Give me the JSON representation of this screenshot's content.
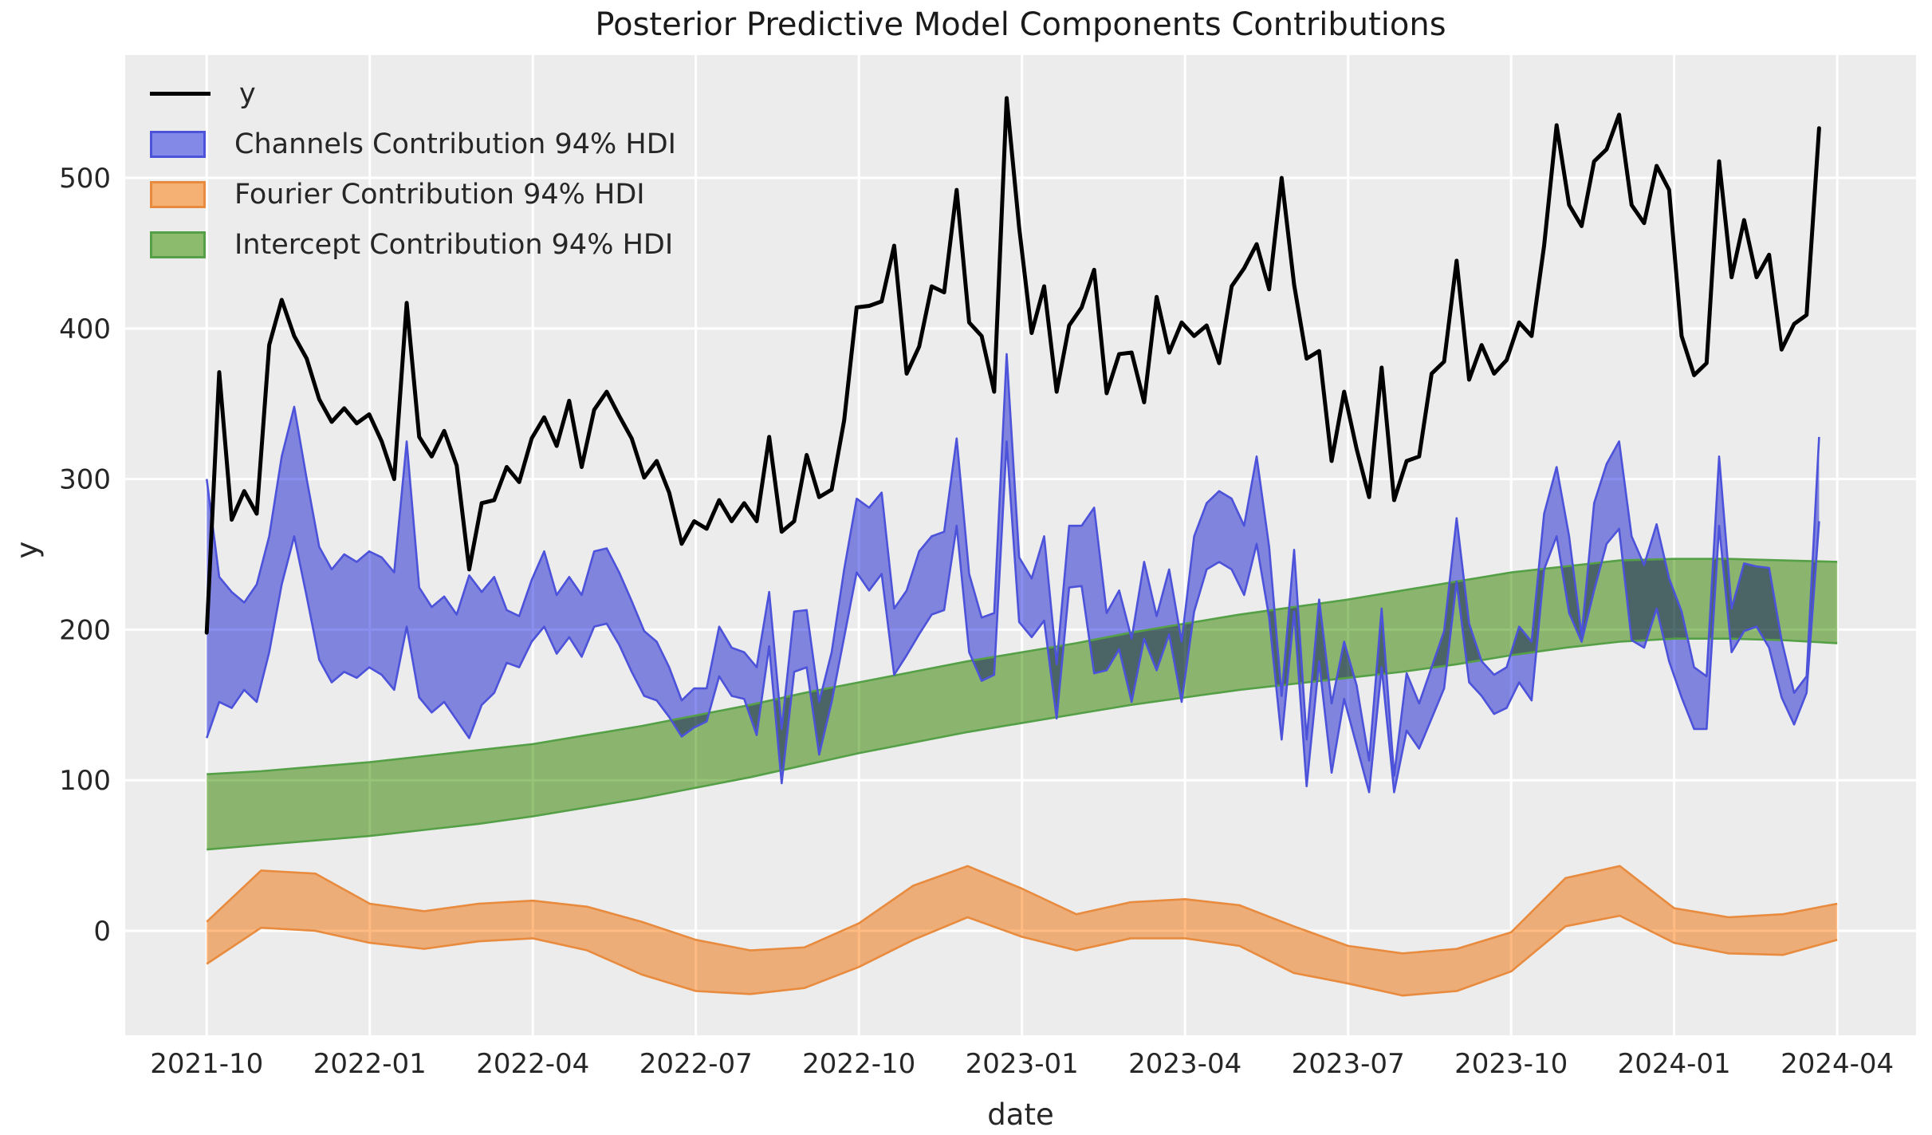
{
  "title": "Posterior Predictive Model Components Contributions",
  "legend": {
    "items": [
      {
        "label": "y",
        "type": "line",
        "color": "#000000"
      },
      {
        "label": "Channels Contribution 94% HDI",
        "type": "patch",
        "fill": "#8289e6",
        "edge": "#4c52d9"
      },
      {
        "label": "Fourier Contribution 94% HDI",
        "type": "patch",
        "fill": "#f5b174",
        "edge": "#e88b3e"
      },
      {
        "label": "Intercept Contribution 94% HDI",
        "type": "patch",
        "fill": "#8cbb6e",
        "edge": "#55a047"
      }
    ]
  },
  "colors": {
    "figure_bg": "#ffffff",
    "axes_bg": "#ececec",
    "grid": "#ffffff",
    "text": "#262626",
    "y_line": "#000000",
    "channels_fill": "#8a8fef",
    "channels_edge": "#4c52d9",
    "fourier_fill": "#ffbb82",
    "fourier_edge": "#e88b3e",
    "intercept_fill": "#96c377",
    "intercept_edge": "#55a047"
  },
  "chart_data": {
    "type": "line",
    "title": "Posterior Predictive Model Components Contributions",
    "xlabel": "date",
    "ylabel": "y",
    "grid": "on",
    "legend_position": "upper left",
    "xlim_months": [
      -1.5,
      31.45
    ],
    "ylim": [
      -69.4,
      581.6
    ],
    "x_tick_months": [
      0,
      3,
      6,
      9,
      12,
      15,
      18,
      21,
      24,
      27,
      30
    ],
    "x_tick_labels": [
      "2021-10",
      "2022-01",
      "2022-04",
      "2022-07",
      "2022-10",
      "2023-01",
      "2023-04",
      "2023-07",
      "2023-10",
      "2024-01",
      "2024-04"
    ],
    "y_ticks": [
      0,
      100,
      200,
      300,
      400,
      500
    ],
    "y_tick_labels": [
      "0",
      "100",
      "200",
      "300",
      "400",
      "500"
    ],
    "weeks_per_month": 4.3484,
    "series": [
      {
        "name": "y",
        "kind": "line",
        "x_unit": "week",
        "start_date": "2021-10",
        "values": [
          198,
          371,
          273,
          292,
          277,
          389,
          419,
          395,
          380,
          353,
          338,
          347,
          337,
          343,
          325,
          300,
          417,
          328,
          315,
          332,
          309,
          240,
          284,
          286,
          308,
          298,
          327,
          341,
          322,
          352,
          308,
          346,
          358,
          342,
          327,
          301,
          312,
          291,
          257,
          272,
          267,
          286,
          272,
          284,
          272,
          328,
          265,
          272,
          316,
          288,
          293,
          339,
          414,
          415,
          418,
          455,
          370,
          388,
          428,
          424,
          492,
          404,
          395,
          358,
          553,
          467,
          397,
          428,
          358,
          402,
          414,
          439,
          357,
          383,
          384,
          351,
          421,
          384,
          404,
          395,
          402,
          377,
          428,
          440,
          456,
          426,
          500,
          429,
          380,
          385,
          312,
          358,
          320,
          288,
          374,
          286,
          312,
          315,
          370,
          378,
          445,
          366,
          389,
          370,
          379,
          404,
          395,
          455,
          535,
          482,
          468,
          511,
          519,
          542,
          482,
          470,
          508,
          492,
          395,
          369,
          377,
          511,
          434,
          472,
          434,
          449,
          386,
          403,
          409,
          533
        ]
      },
      {
        "name": "Channels Contribution 94% HDI",
        "kind": "band",
        "x_unit": "week",
        "start_date": "2021-10",
        "upper": [
          300,
          235,
          225,
          218,
          230,
          262,
          315,
          348,
          300,
          255,
          240,
          250,
          245,
          252,
          248,
          238,
          325,
          228,
          215,
          222,
          210,
          236,
          225,
          235,
          213,
          209,
          233,
          252,
          223,
          235,
          223,
          252,
          254,
          238,
          219,
          199,
          192,
          175,
          153,
          161,
          161,
          202,
          188,
          185,
          175,
          225,
          134,
          212,
          213,
          152,
          185,
          240,
          287,
          281,
          291,
          214,
          226,
          252,
          262,
          265,
          327,
          237,
          208,
          211,
          383,
          248,
          234,
          262,
          177,
          269,
          269,
          281,
          211,
          226,
          194,
          245,
          209,
          240,
          192,
          262,
          284,
          292,
          287,
          269,
          315,
          255,
          156,
          253,
          127,
          220,
          151,
          192,
          163,
          113,
          214,
          103,
          171,
          151,
          175,
          199,
          274,
          204,
          179,
          170,
          175,
          202,
          192,
          277,
          308,
          262,
          196,
          284,
          310,
          325,
          262,
          243,
          270,
          234,
          212,
          175,
          169,
          315,
          214,
          244,
          242,
          241,
          193,
          158,
          169,
          328
        ],
        "lower": [
          128,
          152,
          148,
          160,
          152,
          185,
          230,
          262,
          222,
          180,
          165,
          172,
          168,
          175,
          170,
          160,
          202,
          155,
          145,
          152,
          140,
          128,
          150,
          158,
          178,
          175,
          192,
          202,
          184,
          195,
          182,
          202,
          204,
          190,
          172,
          156,
          153,
          142,
          129,
          135,
          139,
          169,
          156,
          154,
          130,
          189,
          98,
          172,
          175,
          117,
          152,
          195,
          238,
          226,
          237,
          170,
          183,
          197,
          210,
          213,
          269,
          185,
          166,
          170,
          325,
          205,
          195,
          206,
          141,
          228,
          229,
          171,
          173,
          187,
          152,
          194,
          173,
          197,
          152,
          212,
          240,
          245,
          240,
          223,
          257,
          208,
          127,
          212,
          96,
          179,
          105,
          154,
          123,
          92,
          175,
          92,
          133,
          121,
          141,
          161,
          232,
          165,
          156,
          144,
          148,
          165,
          153,
          240,
          262,
          211,
          192,
          226,
          257,
          267,
          193,
          188,
          214,
          179,
          155,
          134,
          134,
          269,
          185,
          199,
          202,
          188,
          155,
          137,
          158,
          272
        ]
      },
      {
        "name": "Fourier Contribution 94% HDI",
        "kind": "band",
        "x_unit": "month",
        "start_date": "2021-10",
        "upper": [
          6,
          40,
          38,
          18,
          13,
          18,
          20,
          16,
          6,
          -6,
          -13,
          -11,
          5,
          30,
          43,
          28,
          11,
          19,
          21,
          17,
          3,
          -10,
          -15,
          -12,
          -1,
          35,
          43,
          15,
          9,
          11,
          18
        ],
        "lower": [
          -22,
          2,
          0,
          -8,
          -12,
          -7,
          -5,
          -13,
          -29,
          -40,
          -42,
          -38,
          -24,
          -6,
          9,
          -4,
          -13,
          -5,
          -5,
          -10,
          -28,
          -35,
          -43,
          -40,
          -27,
          3,
          10,
          -8,
          -15,
          -16,
          -6
        ]
      },
      {
        "name": "Intercept Contribution 94% HDI",
        "kind": "band",
        "x_unit": "month",
        "start_date": "2021-10",
        "upper": [
          104,
          106,
          109,
          112,
          116,
          120,
          124,
          130,
          136,
          143,
          150,
          158,
          165,
          172,
          179,
          185,
          191,
          198,
          204,
          210,
          215,
          220,
          226,
          232,
          238,
          242,
          246,
          247,
          247,
          246,
          245
        ],
        "lower": [
          54,
          57,
          60,
          63,
          67,
          71,
          76,
          82,
          88,
          95,
          102,
          110,
          118,
          125,
          132,
          138,
          144,
          150,
          155,
          160,
          164,
          168,
          172,
          177,
          183,
          188,
          192,
          194,
          194,
          193,
          191
        ]
      }
    ]
  }
}
